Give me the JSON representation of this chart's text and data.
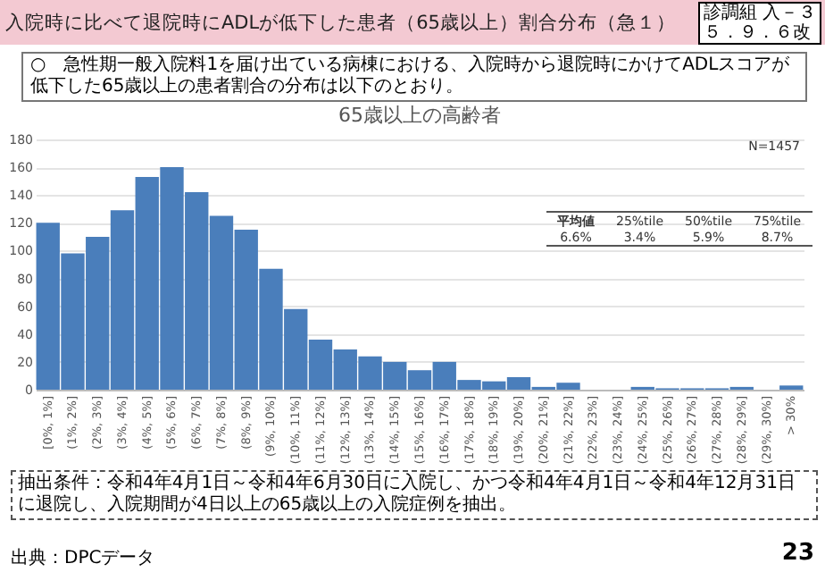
{
  "chart_data": {
    "type": "bar",
    "title": "入院時に比べて退院時にADLが低下した患者（65歳以上）割合分布（急１）",
    "subtitle": "65歳以上の高齢者",
    "categories": [
      "[0%, 1%]",
      "(1%, 2%]",
      "(2%, 3%]",
      "(3%, 4%]",
      "(4%, 5%]",
      "(5%, 6%]",
      "(6%, 7%]",
      "(7%, 8%]",
      "(8%, 9%]",
      "(9%, 10%]",
      "(10%, 11%]",
      "(11%, 12%]",
      "(12%, 13%]",
      "(13%, 14%]",
      "(14%, 15%]",
      "(15%, 16%]",
      "(16%, 17%]",
      "(17%, 18%]",
      "(18%, 19%]",
      "(19%, 20%]",
      "(20%, 21%]",
      "(21%, 22%]",
      "(22%, 23%]",
      "(23%, 24%]",
      "(24%, 25%]",
      "(25%, 26%]",
      "(26%, 27%]",
      "(27%, 28%]",
      "(28%, 29%]",
      "(29%, 30%]",
      "> 30%"
    ],
    "values": [
      120,
      98,
      110,
      129,
      153,
      160,
      142,
      125,
      115,
      87,
      58,
      36,
      29,
      24,
      20,
      14,
      20,
      7,
      6,
      9,
      2,
      5,
      0,
      0,
      2,
      1,
      1,
      1,
      2,
      0,
      3
    ],
    "color": "#4a7ebb",
    "ylim": [
      0,
      180
    ],
    "yticks": [
      0,
      20,
      40,
      60,
      80,
      100,
      120,
      140,
      160,
      180
    ],
    "grid": "y",
    "annotations": [
      "診調組 入－３",
      "５．９．６改",
      "○　急性期一般入院料1を届け出ている病棟における、入院時から退院時にかけてADLスコアが低下した65歳以上の患者割合の分布は以下のとおり。",
      "N=1457",
      "平均値",
      "25%tile",
      "50%tile",
      "75%tile",
      "6.6%",
      "3.4%",
      "5.9%",
      "8.7%",
      "抽出条件：令和4年4月1日～令和4年6月30日に入院し、かつ令和4年4月1日～令和4年12月31日に退院し、入院期間が4日以上の65歳以上の入院症例を抽出。",
      "出典：DPCデータ",
      "23"
    ]
  }
}
